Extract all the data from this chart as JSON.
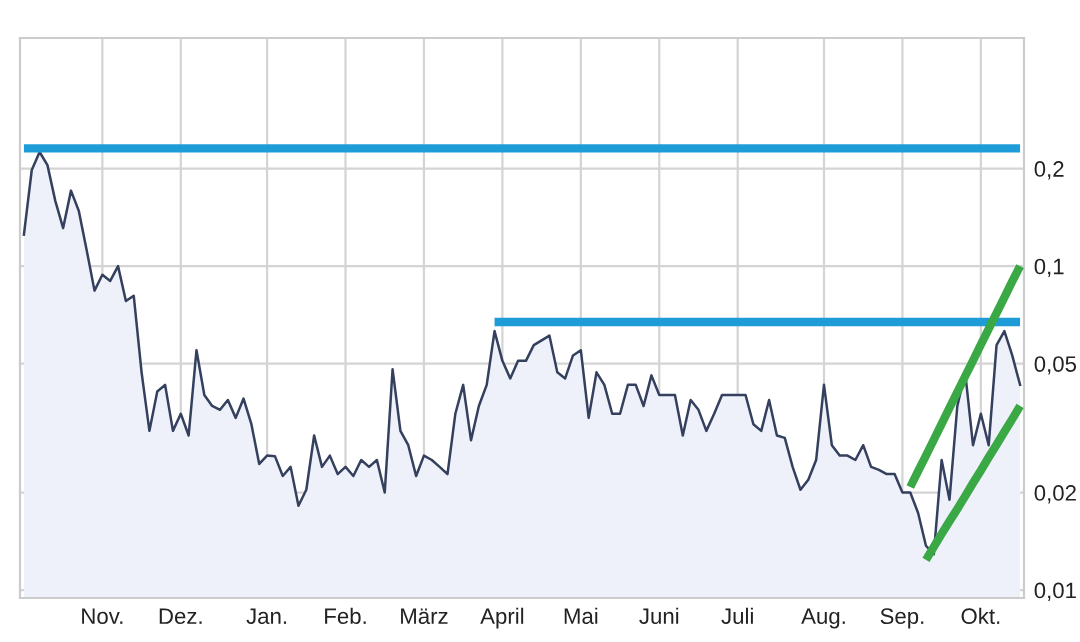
{
  "chart_data": {
    "type": "area",
    "log": "y",
    "grid": true,
    "ylim": [
      0.00945,
      0.506
    ],
    "categories": [
      null,
      null,
      null,
      null,
      null,
      null,
      null,
      null,
      null,
      null,
      "Nov.",
      null,
      null,
      null,
      null,
      null,
      null,
      null,
      null,
      null,
      "Dez.",
      null,
      null,
      null,
      null,
      null,
      null,
      null,
      null,
      null,
      null,
      "Jan.",
      null,
      null,
      null,
      null,
      null,
      null,
      null,
      null,
      null,
      "Feb.",
      null,
      null,
      null,
      null,
      null,
      null,
      null,
      null,
      null,
      "März",
      null,
      null,
      null,
      null,
      null,
      null,
      null,
      null,
      null,
      "April",
      null,
      null,
      null,
      null,
      null,
      null,
      null,
      null,
      null,
      "Mai",
      null,
      null,
      null,
      null,
      null,
      null,
      null,
      null,
      null,
      "Juni",
      null,
      null,
      null,
      null,
      null,
      null,
      null,
      null,
      null,
      "Juli",
      null,
      null,
      null,
      null,
      null,
      null,
      null,
      null,
      null,
      null,
      "Aug.",
      null,
      null,
      null,
      null,
      null,
      null,
      null,
      null,
      null,
      "Sep.",
      null,
      null,
      null,
      null,
      null,
      null,
      null,
      null,
      null,
      "Okt.",
      null,
      null,
      null,
      null,
      null
    ],
    "yticks": [
      {
        "value": 0.01,
        "label": "0,01"
      },
      {
        "value": 0.02,
        "label": "0,02"
      },
      {
        "value": 0.05,
        "label": "0,05"
      },
      {
        "value": 0.1,
        "label": "0,1"
      },
      {
        "value": 0.2,
        "label": "0,2"
      }
    ],
    "series": [
      {
        "color": "#34405e",
        "values": [
          0.125,
          0.198,
          0.225,
          0.205,
          0.159,
          0.131,
          0.171,
          0.148,
          0.112,
          0.084,
          0.094,
          0.09,
          0.1,
          0.078,
          0.081,
          0.047,
          0.031,
          0.041,
          0.043,
          0.031,
          0.035,
          0.03,
          0.055,
          0.04,
          0.037,
          0.036,
          0.0386,
          0.034,
          0.039,
          0.0325,
          0.0245,
          0.026,
          0.0259,
          0.0225,
          0.024,
          0.0182,
          0.0204,
          0.03,
          0.024,
          0.026,
          0.0228,
          0.024,
          0.0225,
          0.0252,
          0.024,
          0.0252,
          0.02,
          0.048,
          0.031,
          0.028,
          0.0225,
          0.026,
          0.0252,
          0.024,
          0.0228,
          0.035,
          0.043,
          0.029,
          0.037,
          0.043,
          0.063,
          0.051,
          0.045,
          0.051,
          0.051,
          0.057,
          0.059,
          0.061,
          0.047,
          0.045,
          0.053,
          0.055,
          0.034,
          0.047,
          0.043,
          0.035,
          0.035,
          0.043,
          0.043,
          0.037,
          0.046,
          0.04,
          0.04,
          0.04,
          0.03,
          0.0386,
          0.036,
          0.031,
          0.035,
          0.04,
          0.04,
          0.04,
          0.04,
          0.0325,
          0.031,
          0.0386,
          0.03,
          0.0295,
          0.024,
          0.0204,
          0.0219,
          0.0252,
          0.043,
          0.028,
          0.026,
          0.026,
          0.0252,
          0.028,
          0.024,
          0.0235,
          0.0228,
          0.0228,
          0.02,
          0.02,
          0.0173,
          0.0137,
          0.0129,
          0.0252,
          0.019,
          0.037,
          0.047,
          0.028,
          0.035,
          0.028,
          0.057,
          0.063,
          0.053,
          0.043
        ]
      },
      {
        "type": "line",
        "color": "#1e9cd7",
        "values": [
          0.231,
          0.231,
          0.231,
          0.231,
          0.231,
          0.231,
          0.231,
          0.231,
          0.231,
          0.231,
          0.231,
          0.231,
          0.231,
          0.231,
          0.231,
          0.231,
          0.231,
          0.231,
          0.231,
          0.231,
          0.231,
          0.231,
          0.231,
          0.231,
          0.231,
          0.231,
          0.231,
          0.231,
          0.231,
          0.231,
          0.231,
          0.231,
          0.231,
          0.231,
          0.231,
          0.231,
          0.231,
          0.231,
          0.231,
          0.231,
          0.231,
          0.231,
          0.231,
          0.231,
          0.231,
          0.231,
          0.231,
          0.231,
          0.231,
          0.231,
          0.231,
          0.231,
          0.231,
          0.231,
          0.231,
          0.231,
          0.231,
          0.231,
          0.231,
          0.231,
          0.231,
          0.231,
          0.231,
          0.231,
          0.231,
          0.231,
          0.231,
          0.231,
          0.231,
          0.231,
          0.231,
          0.231,
          0.231,
          0.231,
          0.231,
          0.231,
          0.231,
          0.231,
          0.231,
          0.231,
          0.231,
          0.231,
          0.231,
          0.231,
          0.231,
          0.231,
          0.231,
          0.231,
          0.231,
          0.231,
          0.231,
          0.231,
          0.231,
          0.231,
          0.231,
          0.231,
          0.231,
          0.231,
          0.231,
          0.231,
          0.231,
          0.231,
          0.231,
          0.231,
          0.231,
          0.231,
          0.231,
          0.231,
          0.231,
          0.231,
          0.231,
          0.231,
          0.231,
          0.231,
          0.231,
          0.231,
          0.231,
          0.231,
          0.231,
          0.231,
          0.231,
          0.231,
          0.231,
          0.231,
          0.231,
          0.231,
          0.231,
          0.231
        ]
      },
      {
        "type": "line",
        "color": "#1e9cd7",
        "values": [
          null,
          null,
          null,
          null,
          null,
          null,
          null,
          null,
          null,
          null,
          null,
          null,
          null,
          null,
          null,
          null,
          null,
          null,
          null,
          null,
          null,
          null,
          null,
          null,
          null,
          null,
          null,
          null,
          null,
          null,
          null,
          null,
          null,
          null,
          null,
          null,
          null,
          null,
          null,
          null,
          null,
          null,
          null,
          null,
          null,
          null,
          null,
          null,
          null,
          null,
          null,
          null,
          null,
          null,
          null,
          null,
          null,
          null,
          null,
          null,
          0.0672,
          0.0672,
          0.0672,
          0.0672,
          0.0672,
          0.0672,
          0.0672,
          0.0672,
          0.0672,
          0.0672,
          0.0672,
          0.0672,
          0.0672,
          0.0672,
          0.0672,
          0.0672,
          0.0672,
          0.0672,
          0.0672,
          0.0672,
          0.0672,
          0.0672,
          0.0672,
          0.0672,
          0.0672,
          0.0672,
          0.0672,
          0.0672,
          0.0672,
          0.0672,
          0.0672,
          0.0672,
          0.0672,
          0.0672,
          0.0672,
          0.0672,
          0.0672,
          0.0672,
          0.0672,
          0.0672,
          0.0672,
          0.0672,
          0.0672,
          0.0672,
          0.0672,
          0.0672,
          0.0672,
          0.0672,
          0.0672,
          0.0672,
          0.0672,
          0.0672,
          0.0672,
          0.0672,
          0.0672,
          0.0672,
          0.0672,
          0.0672,
          0.0672,
          0.0672,
          0.0672,
          0.0672,
          0.0672,
          0.0672,
          0.0672,
          0.0672,
          0.0672,
          0.0672
        ]
      },
      {
        "type": "line",
        "color": "#3aa845",
        "values": [
          null,
          null,
          null,
          null,
          null,
          null,
          null,
          null,
          null,
          null,
          null,
          null,
          null,
          null,
          null,
          null,
          null,
          null,
          null,
          null,
          null,
          null,
          null,
          null,
          null,
          null,
          null,
          null,
          null,
          null,
          null,
          null,
          null,
          null,
          null,
          null,
          null,
          null,
          null,
          null,
          null,
          null,
          null,
          null,
          null,
          null,
          null,
          null,
          null,
          null,
          null,
          null,
          null,
          null,
          null,
          null,
          null,
          null,
          null,
          null,
          null,
          null,
          null,
          null,
          null,
          null,
          null,
          null,
          null,
          null,
          null,
          null,
          null,
          null,
          null,
          null,
          null,
          null,
          null,
          null,
          null,
          null,
          null,
          null,
          null,
          null,
          null,
          null,
          null,
          null,
          null,
          null,
          null,
          null,
          null,
          null,
          null,
          null,
          null,
          null,
          null,
          null,
          null,
          null,
          null,
          null,
          null,
          null,
          null,
          null,
          null,
          null,
          null,
          0.0208,
          0.0233,
          0.026,
          0.0291,
          0.0326,
          0.0365,
          0.0408,
          0.0457,
          0.0511,
          0.0572,
          0.064,
          0.0716,
          0.0801,
          0.0897,
          0.1
        ]
      },
      {
        "type": "line",
        "color": "#3aa845",
        "values": [
          null,
          null,
          null,
          null,
          null,
          null,
          null,
          null,
          null,
          null,
          null,
          null,
          null,
          null,
          null,
          null,
          null,
          null,
          null,
          null,
          null,
          null,
          null,
          null,
          null,
          null,
          null,
          null,
          null,
          null,
          null,
          null,
          null,
          null,
          null,
          null,
          null,
          null,
          null,
          null,
          null,
          null,
          null,
          null,
          null,
          null,
          null,
          null,
          null,
          null,
          null,
          null,
          null,
          null,
          null,
          null,
          null,
          null,
          null,
          null,
          null,
          null,
          null,
          null,
          null,
          null,
          null,
          null,
          null,
          null,
          null,
          null,
          null,
          null,
          null,
          null,
          null,
          null,
          null,
          null,
          null,
          null,
          null,
          null,
          null,
          null,
          null,
          null,
          null,
          null,
          null,
          null,
          null,
          null,
          null,
          null,
          null,
          null,
          null,
          null,
          null,
          null,
          null,
          null,
          null,
          null,
          null,
          null,
          null,
          null,
          null,
          null,
          null,
          null,
          null,
          0.0124,
          0.0136,
          0.0149,
          0.0163,
          0.0178,
          0.0195,
          0.0214,
          0.0234,
          0.0257,
          0.0281,
          0.0308,
          0.0337,
          0.037
        ]
      }
    ]
  }
}
